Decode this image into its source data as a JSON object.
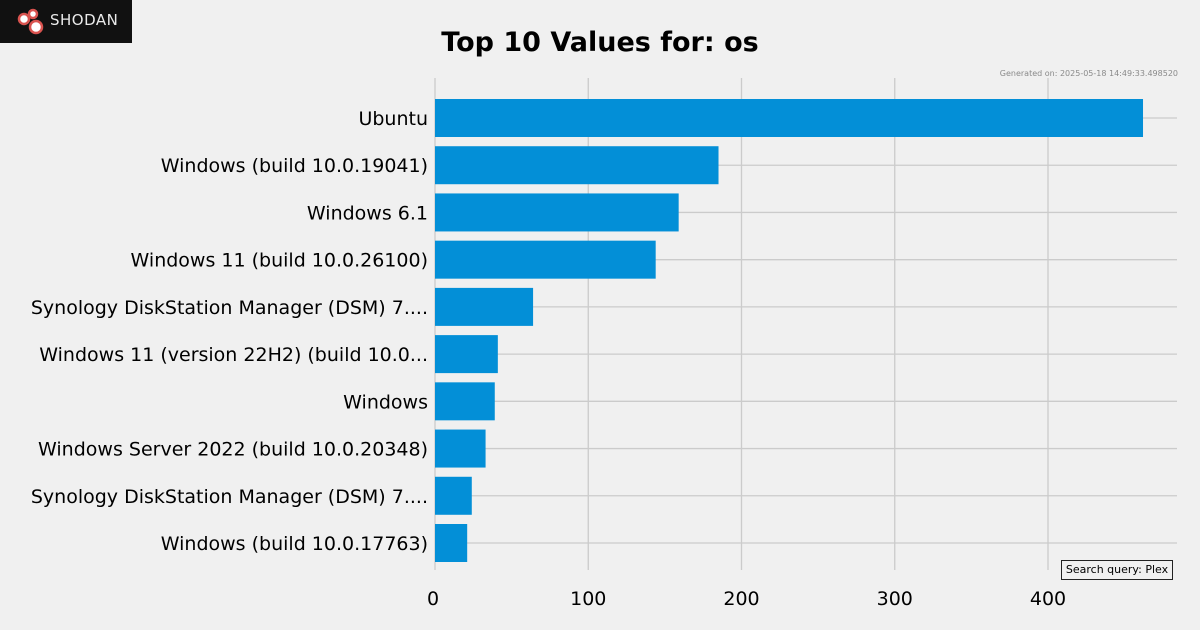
{
  "brand": {
    "name": "Shodan",
    "display": "SHODAN"
  },
  "title": "Top 10 Values for: os",
  "generated": "Generated on: 2025-05-18 14:49:33.498520",
  "query": "Search query: Plex",
  "colors": {
    "bar": "#038fd7",
    "grid": "#cbcbcb",
    "background": "#f0f0f0"
  },
  "chart_data": {
    "type": "bar",
    "orientation": "horizontal",
    "categories": [
      "Ubuntu",
      "Windows (build 10.0.19041)",
      "Windows 6.1",
      "Windows 11 (build 10.0.26100)",
      "Synology DiskStation Manager (DSM) 7....",
      "Windows 11 (version 22H2) (build 10.0...",
      "Windows",
      "Windows Server 2022 (build 10.0.20348)",
      "Synology DiskStation Manager (DSM) 7....",
      "Windows (build 10.0.17763)"
    ],
    "values": [
      462,
      185,
      159,
      144,
      64,
      41,
      39,
      33,
      24,
      21
    ],
    "xticks": [
      0,
      100,
      200,
      300,
      400
    ],
    "xlim": [
      0,
      485
    ],
    "grid": true
  }
}
